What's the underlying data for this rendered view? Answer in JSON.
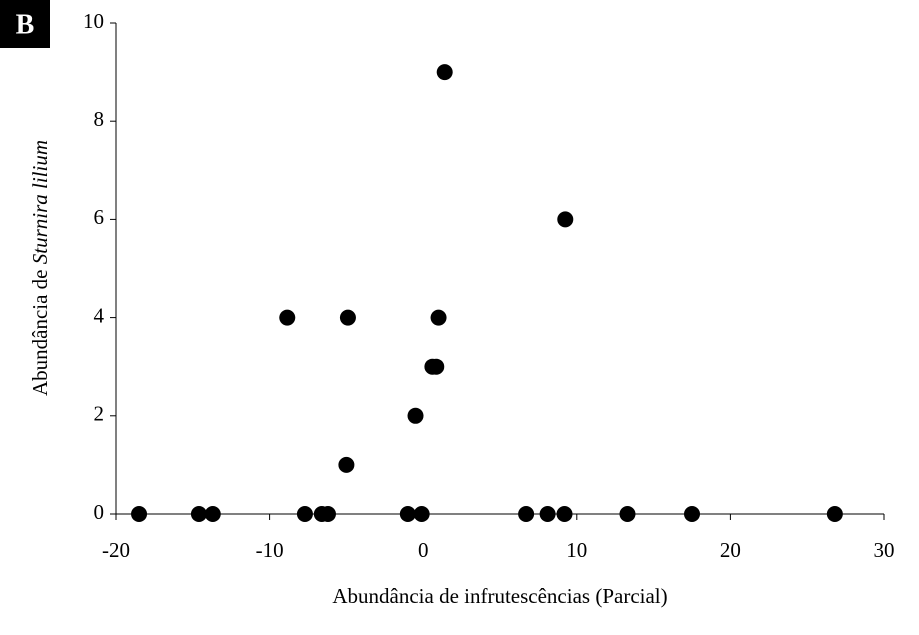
{
  "panel_label": "B",
  "chart_data": {
    "type": "scatter",
    "x_label": "Abundância de infrutescências (Parcial)",
    "y_label": {
      "prefix": "Abundância de ",
      "species": "Sturnira lilium"
    },
    "x": [
      -18.5,
      -14.6,
      -13.7,
      -8.85,
      -7.7,
      -6.6,
      -6.2,
      -4.9,
      -5.0,
      -1.0,
      -0.5,
      -0.1,
      0.6,
      0.85,
      1.0,
      1.4,
      6.7,
      8.1,
      9.2,
      9.25,
      13.3,
      17.5,
      26.8
    ],
    "values": [
      0,
      0,
      0,
      4,
      0,
      0,
      0,
      4,
      1,
      0,
      2,
      0,
      3,
      3,
      4,
      9,
      0,
      0,
      0,
      6,
      0,
      0,
      0
    ],
    "color": "#000000",
    "xlim": [
      -20,
      30
    ],
    "xticks": [
      -20,
      -10,
      0,
      10,
      20,
      30
    ],
    "ylim": [
      0,
      10
    ],
    "yticks": [
      0,
      2,
      4,
      6,
      8,
      10
    ],
    "grid": false
  }
}
